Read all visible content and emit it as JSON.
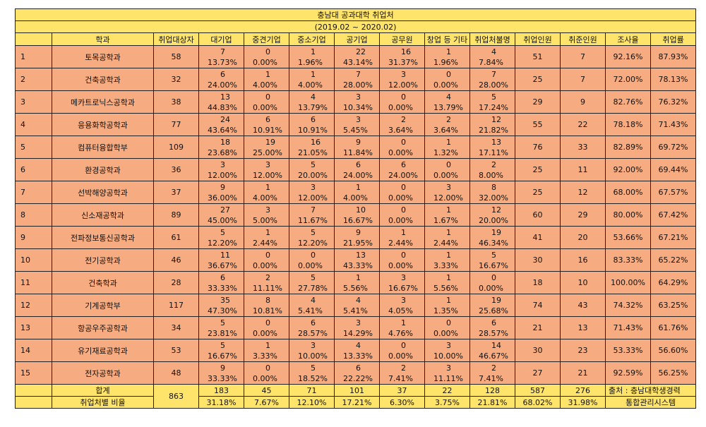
{
  "title": {
    "line1": "충남대 공과대학 취업처",
    "line2": "(2019.02 ~ 2020.02)"
  },
  "headers": [
    "",
    "학과",
    "취업대상자",
    "대기업",
    "중견기업",
    "중소기업",
    "공기업",
    "공무원",
    "창업 등 기타",
    "취업처불명",
    "취업인원",
    "취준인원",
    "조사율",
    "취업률"
  ],
  "rows": [
    {
      "no": "1",
      "dept": "토목공학과",
      "target": "58",
      "pairs": [
        [
          "7",
          "13.73%"
        ],
        [
          "0",
          "0.00%"
        ],
        [
          "1",
          "1.96%"
        ],
        [
          "22",
          "43.14%"
        ],
        [
          "16",
          "31.37%"
        ],
        [
          "1",
          "1.96%"
        ],
        [
          "4",
          "7.84%"
        ]
      ],
      "employed": "51",
      "seeking": "7",
      "survey": "92.16%",
      "rate": "87.93%"
    },
    {
      "no": "2",
      "dept": "건축공학과",
      "target": "32",
      "pairs": [
        [
          "6",
          "24.00%"
        ],
        [
          "1",
          "4.00%"
        ],
        [
          "1",
          "4.00%"
        ],
        [
          "7",
          "28.00%"
        ],
        [
          "3",
          "12.00%"
        ],
        [
          "0",
          "0.00%"
        ],
        [
          "7",
          "28.00%"
        ]
      ],
      "employed": "25",
      "seeking": "7",
      "survey": "72.00%",
      "rate": "78.13%"
    },
    {
      "no": "3",
      "dept": "메카트로닉스공학과",
      "target": "38",
      "pairs": [
        [
          "13",
          "44.83%"
        ],
        [
          "0",
          "0.00%"
        ],
        [
          "4",
          "13.79%"
        ],
        [
          "3",
          "10.34%"
        ],
        [
          "0",
          "0.00%"
        ],
        [
          "4",
          "13.79%"
        ],
        [
          "5",
          "17.24%"
        ]
      ],
      "employed": "29",
      "seeking": "9",
      "survey": "82.76%",
      "rate": "76.32%"
    },
    {
      "no": "4",
      "dept": "응용화학공학과",
      "target": "77",
      "pairs": [
        [
          "24",
          "43.64%"
        ],
        [
          "6",
          "10.91%"
        ],
        [
          "6",
          "10.91%"
        ],
        [
          "3",
          "5.45%"
        ],
        [
          "2",
          "3.64%"
        ],
        [
          "2",
          "3.64%"
        ],
        [
          "12",
          "21.82%"
        ]
      ],
      "employed": "55",
      "seeking": "22",
      "survey": "78.18%",
      "rate": "71.43%"
    },
    {
      "no": "5",
      "dept": "컴퓨터융합학부",
      "target": "109",
      "pairs": [
        [
          "18",
          "23.68%"
        ],
        [
          "19",
          "25.00%"
        ],
        [
          "16",
          "21.05%"
        ],
        [
          "9",
          "11.84%"
        ],
        [
          "0",
          "0.00%"
        ],
        [
          "1",
          "1.32%"
        ],
        [
          "13",
          "17.11%"
        ]
      ],
      "employed": "76",
      "seeking": "33",
      "survey": "82.89%",
      "rate": "69.72%"
    },
    {
      "no": "6",
      "dept": "환경공학과",
      "target": "36",
      "pairs": [
        [
          "3",
          "12.00%"
        ],
        [
          "3",
          "12.00%"
        ],
        [
          "5",
          "20.00%"
        ],
        [
          "6",
          "24.00%"
        ],
        [
          "6",
          "24.00%"
        ],
        [
          "0",
          "0.00%"
        ],
        [
          "2",
          "8.00%"
        ]
      ],
      "employed": "25",
      "seeking": "11",
      "survey": "92.00%",
      "rate": "69.44%"
    },
    {
      "no": "7",
      "dept": "선박해양공학과",
      "target": "37",
      "pairs": [
        [
          "9",
          "36.00%"
        ],
        [
          "1",
          "4.00%"
        ],
        [
          "3",
          "12.00%"
        ],
        [
          "1",
          "4.00%"
        ],
        [
          "0",
          "0.00%"
        ],
        [
          "3",
          "12.00%"
        ],
        [
          "8",
          "32.00%"
        ]
      ],
      "employed": "25",
      "seeking": "12",
      "survey": "68.00%",
      "rate": "67.57%"
    },
    {
      "no": "8",
      "dept": "신소재공학과",
      "target": "89",
      "pairs": [
        [
          "27",
          "45.00%"
        ],
        [
          "3",
          "5.00%"
        ],
        [
          "7",
          "11.67%"
        ],
        [
          "10",
          "16.67%"
        ],
        [
          "0",
          "0.00%"
        ],
        [
          "1",
          "1.67%"
        ],
        [
          "12",
          "20.00%"
        ]
      ],
      "employed": "60",
      "seeking": "29",
      "survey": "80.00%",
      "rate": "67.42%"
    },
    {
      "no": "9",
      "dept": "전파정보통신공학과",
      "target": "61",
      "pairs": [
        [
          "5",
          "12.20%"
        ],
        [
          "1",
          "2.44%"
        ],
        [
          "5",
          "12.20%"
        ],
        [
          "9",
          "21.95%"
        ],
        [
          "1",
          "2.44%"
        ],
        [
          "1",
          "2.44%"
        ],
        [
          "19",
          "46.34%"
        ]
      ],
      "employed": "41",
      "seeking": "20",
      "survey": "53.66%",
      "rate": "67.21%"
    },
    {
      "no": "10",
      "dept": "전기공학과",
      "target": "46",
      "pairs": [
        [
          "11",
          "36.67%"
        ],
        [
          "0",
          "0.00%"
        ],
        [
          "0",
          "0.00%"
        ],
        [
          "13",
          "43.33%"
        ],
        [
          "0",
          "0.00%"
        ],
        [
          "1",
          "3.33%"
        ],
        [
          "5",
          "16.67%"
        ]
      ],
      "employed": "30",
      "seeking": "16",
      "survey": "83.33%",
      "rate": "65.22%"
    },
    {
      "no": "11",
      "dept": "건축학과",
      "target": "28",
      "pairs": [
        [
          "6",
          "33.33%"
        ],
        [
          "2",
          "11.11%"
        ],
        [
          "5",
          "27.78%"
        ],
        [
          "1",
          "5.56%"
        ],
        [
          "3",
          "16.67%"
        ],
        [
          "1",
          "5.56%"
        ],
        [
          "0",
          "0.00%"
        ]
      ],
      "employed": "18",
      "seeking": "10",
      "survey": "100.00%",
      "rate": "64.29%"
    },
    {
      "no": "12",
      "dept": "기계공학부",
      "target": "117",
      "pairs": [
        [
          "35",
          "47.30%"
        ],
        [
          "8",
          "10.81%"
        ],
        [
          "4",
          "5.41%"
        ],
        [
          "4",
          "5.41%"
        ],
        [
          "3",
          "4.05%"
        ],
        [
          "1",
          "1.35%"
        ],
        [
          "19",
          "25.68%"
        ]
      ],
      "employed": "74",
      "seeking": "43",
      "survey": "74.32%",
      "rate": "63.25%"
    },
    {
      "no": "13",
      "dept": "항공우주공학과",
      "target": "34",
      "pairs": [
        [
          "5",
          "23.81%"
        ],
        [
          "0",
          "0.00%"
        ],
        [
          "6",
          "28.57%"
        ],
        [
          "3",
          "14.29%"
        ],
        [
          "1",
          "4.76%"
        ],
        [
          "0",
          "0.00%"
        ],
        [
          "6",
          "28.57%"
        ]
      ],
      "employed": "21",
      "seeking": "13",
      "survey": "71.43%",
      "rate": "61.76%"
    },
    {
      "no": "14",
      "dept": "유기재료공학과",
      "target": "53",
      "pairs": [
        [
          "5",
          "16.67%"
        ],
        [
          "1",
          "3.33%"
        ],
        [
          "3",
          "10.00%"
        ],
        [
          "4",
          "13.33%"
        ],
        [
          "0",
          "0.00%"
        ],
        [
          "3",
          "10.00%"
        ],
        [
          "14",
          "46.67%"
        ]
      ],
      "employed": "30",
      "seeking": "23",
      "survey": "53.33%",
      "rate": "56.60%"
    },
    {
      "no": "15",
      "dept": "전자공학과",
      "target": "48",
      "pairs": [
        [
          "9",
          "33.33%"
        ],
        [
          "0",
          "0.00%"
        ],
        [
          "5",
          "18.52%"
        ],
        [
          "6",
          "22.22%"
        ],
        [
          "2",
          "7.41%"
        ],
        [
          "3",
          "11.11%"
        ],
        [
          "2",
          "7.41%"
        ]
      ],
      "employed": "27",
      "seeking": "21",
      "survey": "92.59%",
      "rate": "56.25%"
    }
  ],
  "summary": {
    "total_label": "합계",
    "ratio_label": "취업처별 비율",
    "target_total": "863",
    "totals": [
      "183",
      "45",
      "71",
      "101",
      "37",
      "22",
      "128",
      "587",
      "276"
    ],
    "ratios": [
      "31.18%",
      "7.67%",
      "12.10%",
      "17.21%",
      "6.30%",
      "3.75%",
      "21.81%",
      "68.02%",
      "31.98%"
    ],
    "source_line1": "출처 : 충남대학생경력",
    "source_line2": "통합관리시스템"
  },
  "colors": {
    "header_bg": "#ffe46b",
    "row_bg": "#f7ab80"
  }
}
